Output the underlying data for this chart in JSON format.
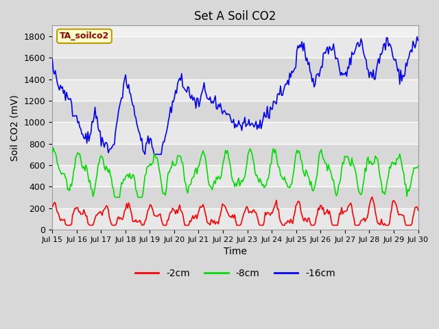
{
  "title": "Set A Soil CO2",
  "xlabel": "Time",
  "ylabel": "Soil CO2 (mV)",
  "ylim": [
    0,
    1900
  ],
  "yticks": [
    0,
    200,
    400,
    600,
    800,
    1000,
    1200,
    1400,
    1600,
    1800
  ],
  "legend_label": "TA_soilco2",
  "legend_bg": "#ffffcc",
  "legend_border": "#bb9900",
  "legend_text_color": "#990000",
  "series_labels": [
    "-2cm",
    "-8cm",
    "-16cm"
  ],
  "series_colors": [
    "#ff0000",
    "#00dd00",
    "#0000ff"
  ],
  "bg_color": "#d8d8d8",
  "plot_bg": "#f0f0f0",
  "band_colors": [
    "#e8e8e8",
    "#d8d8d8"
  ],
  "grid_color": "#ffffff",
  "x_start": 15.0,
  "x_end": 30.0,
  "xtick_positions": [
    15.0,
    16.0,
    17.0,
    18.0,
    19.0,
    20.0,
    21.0,
    22.0,
    23.0,
    24.0,
    25.0,
    26.0,
    27.0,
    28.0,
    29.0,
    30.0
  ],
  "xtick_labels": [
    "Jul 15",
    "Jul 16",
    "Jul 17",
    "Jul 18",
    "Jul 19",
    "Jul 20",
    "Jul 21",
    "Jul 22",
    "Jul 23",
    "Jul 24",
    "Jul 25",
    "Jul 26",
    "Jul 27",
    "Jul 28",
    "Jul 29",
    "Jul 30"
  ],
  "figsize": [
    6.4,
    4.8
  ],
  "dpi": 100
}
